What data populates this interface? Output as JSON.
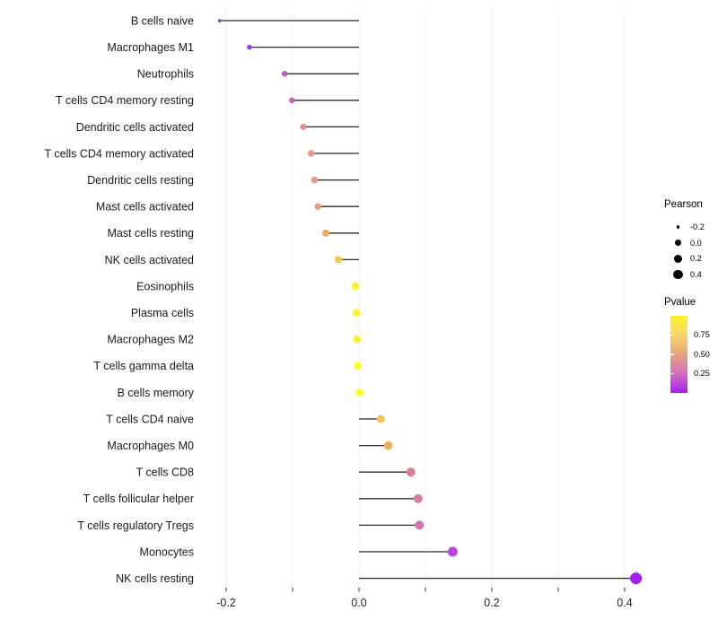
{
  "chart_data": {
    "type": "scatter",
    "subtype": "lollipop",
    "title": "",
    "xlabel": "",
    "ylabel": "",
    "xlim": [
      -0.24,
      0.45
    ],
    "baseline": 0,
    "grid": "vertical-light-gridlines",
    "legend_position": "right",
    "x_ticks": [
      -0.2,
      -0.1,
      0.0,
      0.1,
      0.2,
      0.3,
      0.4
    ],
    "x_major_ticks": [
      -0.2,
      0.0,
      0.2,
      0.4
    ],
    "x_tick_labels": [
      "-0.2",
      "0.0",
      "0.2",
      "0.4"
    ],
    "points": [
      {
        "label": "B cells naive",
        "pearson": -0.21,
        "color": "#8B22E8",
        "size": 3.5
      },
      {
        "label": "Macrophages M1",
        "pearson": -0.165,
        "color": "#A433E4",
        "size": 5.5
      },
      {
        "label": "Neutrophils",
        "pearson": -0.112,
        "color": "#C55CBB",
        "size": 6.5
      },
      {
        "label": "T cells CD4 memory resting",
        "pearson": -0.101,
        "color": "#CB67B0",
        "size": 6.5
      },
      {
        "label": "Dendritic cells activated",
        "pearson": -0.084,
        "color": "#E28C9B",
        "size": 7
      },
      {
        "label": "T cells CD4 memory activated",
        "pearson": -0.072,
        "color": "#E69B85",
        "size": 7.5
      },
      {
        "label": "Dendritic cells resting",
        "pearson": -0.067,
        "color": "#E59C7E",
        "size": 7.5
      },
      {
        "label": "Mast cells activated",
        "pearson": -0.062,
        "color": "#E8A073",
        "size": 7.5
      },
      {
        "label": "Mast cells resting",
        "pearson": -0.05,
        "color": "#ECAC60",
        "size": 8
      },
      {
        "label": "NK cells activated",
        "pearson": -0.031,
        "color": "#F0C64B",
        "size": 8
      },
      {
        "label": "Eosinophils",
        "pearson": -0.005,
        "color": "#FBF32A",
        "size": 8.5
      },
      {
        "label": "Plasma cells",
        "pearson": -0.004,
        "color": "#FBF32A",
        "size": 8.5
      },
      {
        "label": "Macrophages M2",
        "pearson": -0.003,
        "color": "#FBF32A",
        "size": 8.5
      },
      {
        "label": "T cells gamma delta",
        "pearson": -0.002,
        "color": "#FDFB20",
        "size": 8.5
      },
      {
        "label": "B cells memory",
        "pearson": 0.001,
        "color": "#FDFB20",
        "size": 8.5
      },
      {
        "label": "T cells CD4 naive",
        "pearson": 0.033,
        "color": "#F0C258",
        "size": 9
      },
      {
        "label": "Macrophages M0",
        "pearson": 0.044,
        "color": "#EEAC5E",
        "size": 9.5
      },
      {
        "label": "T cells CD8",
        "pearson": 0.078,
        "color": "#DB7E93",
        "size": 10
      },
      {
        "label": "T cells follicular helper",
        "pearson": 0.089,
        "color": "#D77CA2",
        "size": 10
      },
      {
        "label": "T cells regulatory  Tregs",
        "pearson": 0.091,
        "color": "#D274AC",
        "size": 10
      },
      {
        "label": "Monocytes",
        "pearson": 0.141,
        "color": "#BC45DE",
        "size": 11
      },
      {
        "label": "NK cells resting",
        "pearson": 0.417,
        "color": "#A21EF0",
        "size": 13
      }
    ],
    "legend": {
      "size_legend": {
        "title": "Pearson",
        "dot_color": "#000000",
        "entries": [
          {
            "label": "-0.2",
            "size": 3.5
          },
          {
            "label": "0.0",
            "size": 7.5
          },
          {
            "label": "0.2",
            "size": 9
          },
          {
            "label": "0.4",
            "size": 10.5
          }
        ]
      },
      "color_legend": {
        "title": "Pvalue",
        "labels": [
          "0.75",
          "0.50",
          "0.25"
        ],
        "label_values": [
          0.75,
          0.5,
          0.25
        ],
        "range": [
          0,
          1
        ],
        "gradient_top_to_bottom": [
          "#FCF527",
          "#F7D66B",
          "#E8A27E",
          "#D26FC0",
          "#A61EF5"
        ]
      }
    },
    "colors": {
      "stick": "#2B2B2B",
      "gridline_major": "#EBEBEB",
      "gridline_minor": "#F3F3F3",
      "axis_text": "#262626",
      "tick_mark": "#333333"
    }
  }
}
